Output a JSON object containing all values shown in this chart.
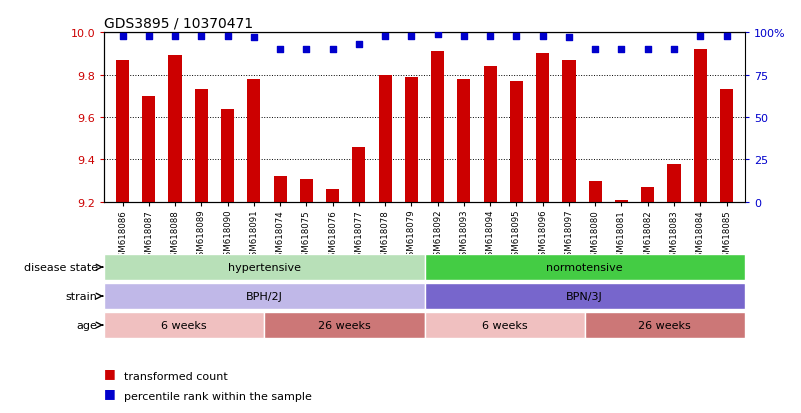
{
  "title": "GDS3895 / 10370471",
  "samples": [
    "GSM618086",
    "GSM618087",
    "GSM618088",
    "GSM618089",
    "GSM618090",
    "GSM618091",
    "GSM618074",
    "GSM618075",
    "GSM618076",
    "GSM618077",
    "GSM618078",
    "GSM618079",
    "GSM618092",
    "GSM618093",
    "GSM618094",
    "GSM618095",
    "GSM618096",
    "GSM618097",
    "GSM618080",
    "GSM618081",
    "GSM618082",
    "GSM618083",
    "GSM618084",
    "GSM618085"
  ],
  "bar_values": [
    9.87,
    9.7,
    9.89,
    9.73,
    9.64,
    9.78,
    9.32,
    9.31,
    9.26,
    9.46,
    9.8,
    9.79,
    9.91,
    9.78,
    9.84,
    9.77,
    9.9,
    9.87,
    9.3,
    9.21,
    9.27,
    9.38,
    9.92,
    9.73
  ],
  "percentile_values": [
    98,
    98,
    98,
    98,
    98,
    97,
    90,
    90,
    90,
    93,
    98,
    98,
    99,
    98,
    98,
    98,
    98,
    97,
    90,
    90,
    90,
    90,
    98,
    98
  ],
  "bar_color": "#cc0000",
  "percentile_color": "#0000cc",
  "ylim_left": [
    9.2,
    10.0
  ],
  "ylim_right": [
    0,
    100
  ],
  "yticks_left": [
    9.2,
    9.4,
    9.6,
    9.8,
    10.0
  ],
  "yticks_right": [
    0,
    25,
    50,
    75,
    100
  ],
  "ytick_labels_right": [
    "0",
    "25",
    "50",
    "75",
    "100%"
  ],
  "disease_state_segments": [
    {
      "start": 0,
      "end": 12,
      "color": "#b8e0b8",
      "label": "hypertensive"
    },
    {
      "start": 12,
      "end": 24,
      "color": "#44cc44",
      "label": "normotensive"
    }
  ],
  "strain_segments": [
    {
      "start": 0,
      "end": 12,
      "color": "#c0b8e8",
      "label": "BPH/2J"
    },
    {
      "start": 12,
      "end": 24,
      "color": "#7766cc",
      "label": "BPN/3J"
    }
  ],
  "age_segments": [
    {
      "start": 0,
      "end": 6,
      "color": "#f0c0c0",
      "label": "6 weeks"
    },
    {
      "start": 6,
      "end": 12,
      "color": "#cc7777",
      "label": "26 weeks"
    },
    {
      "start": 12,
      "end": 18,
      "color": "#f0c0c0",
      "label": "6 weeks"
    },
    {
      "start": 18,
      "end": 24,
      "color": "#cc7777",
      "label": "26 weeks"
    }
  ],
  "row_labels": [
    "disease state",
    "strain",
    "age"
  ],
  "legend_items": [
    {
      "label": "transformed count",
      "color": "#cc0000"
    },
    {
      "label": "percentile rank within the sample",
      "color": "#0000cc"
    }
  ]
}
